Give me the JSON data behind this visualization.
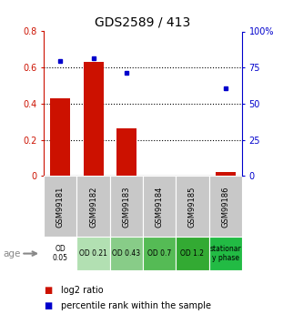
{
  "title": "GDS2589 / 413",
  "samples": [
    "GSM99181",
    "GSM99182",
    "GSM99183",
    "GSM99184",
    "GSM99185",
    "GSM99186"
  ],
  "log2_ratio": [
    0.43,
    0.63,
    0.265,
    0.0,
    0.0,
    0.02
  ],
  "percentile_rank": [
    79.5,
    81.5,
    71.5,
    0.0,
    0.0,
    60.5
  ],
  "age_labels": [
    "OD\n0.05",
    "OD 0.21",
    "OD 0.43",
    "OD 0.7",
    "OD 1.2",
    "stationar\ny phase"
  ],
  "age_colors": [
    "#ffffff",
    "#b2e0b2",
    "#88cc88",
    "#55bb55",
    "#33aa33",
    "#22bb44"
  ],
  "sample_bg_color": "#c8c8c8",
  "bar_color": "#cc1100",
  "dot_color": "#0000cc",
  "ylim_left": [
    0,
    0.8
  ],
  "ylim_right": [
    0,
    100
  ],
  "yticks_left": [
    0,
    0.2,
    0.4,
    0.6,
    0.8
  ],
  "yticks_right": [
    0,
    25,
    50,
    75,
    100
  ],
  "ytick_labels_left": [
    "0",
    "0.2",
    "0.4",
    "0.6",
    "0.8"
  ],
  "ytick_labels_right": [
    "0",
    "25",
    "50",
    "75",
    "100%"
  ],
  "left_tick_color": "#cc1100",
  "right_tick_color": "#0000cc",
  "title_fontsize": 10,
  "legend_fontsize": 7,
  "tick_fontsize": 7,
  "sample_fontsize": 6,
  "age_fontsize": 5.5
}
